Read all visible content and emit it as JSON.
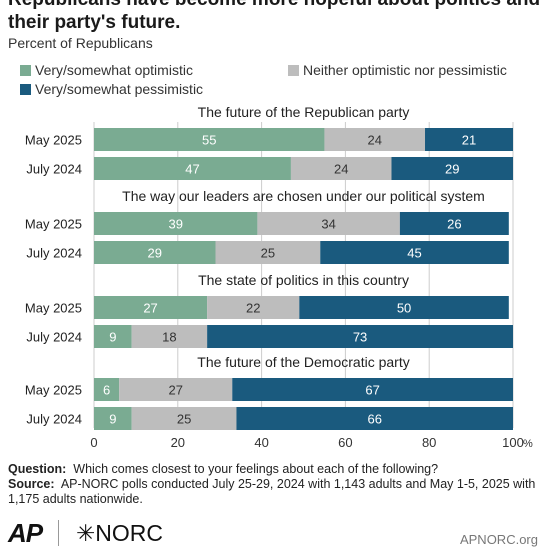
{
  "header": {
    "title": "Republicans have become more hopeful about politics and their party's future.",
    "subtitle": "Percent of Republicans"
  },
  "colors": {
    "optimistic": "#7aab92",
    "neither": "#bdbdbd",
    "pessimistic": "#1a5a7e",
    "grid": "#cccccc"
  },
  "chart_data": {
    "type": "bar",
    "orientation": "horizontal-stacked",
    "legend": [
      "Very/somewhat optimistic",
      "Neither optimistic nor pessimistic",
      "Very/somewhat pessimistic"
    ],
    "legend_position": "top",
    "xlim": [
      0,
      100
    ],
    "xticks": [
      "0",
      "20",
      "40",
      "60",
      "80",
      "100"
    ],
    "x_unit": "%",
    "groups": [
      {
        "title": "The future of the Republican party",
        "rows": [
          {
            "label": "May 2025",
            "values": [
              55,
              24,
              21
            ]
          },
          {
            "label": "July 2024",
            "values": [
              47,
              24,
              29
            ]
          }
        ]
      },
      {
        "title": "The way our leaders are chosen under our political system",
        "rows": [
          {
            "label": "May 2025",
            "values": [
              39,
              34,
              26
            ]
          },
          {
            "label": "July 2024",
            "values": [
              29,
              25,
              45
            ]
          }
        ]
      },
      {
        "title": "The state of politics in this country",
        "rows": [
          {
            "label": "May 2025",
            "values": [
              27,
              22,
              50
            ]
          },
          {
            "label": "July 2024",
            "values": [
              9,
              18,
              73
            ]
          }
        ]
      },
      {
        "title": "The future of the Democratic party",
        "rows": [
          {
            "label": "May 2025",
            "values": [
              6,
              27,
              67
            ]
          },
          {
            "label": "July 2024",
            "values": [
              9,
              25,
              66
            ]
          }
        ]
      }
    ]
  },
  "footer": {
    "question_label": "Question:",
    "question_text": "Which comes closest to your feelings about each of the following?",
    "source_label": "Source:",
    "source_text": "AP-NORC polls conducted July 25-29, 2024 with 1,143 adults and May 1-5, 2025 with 1,175 adults nationwide."
  },
  "branding": {
    "ap": "AP",
    "norc": "✳NORC",
    "site": "APNORC.org"
  }
}
